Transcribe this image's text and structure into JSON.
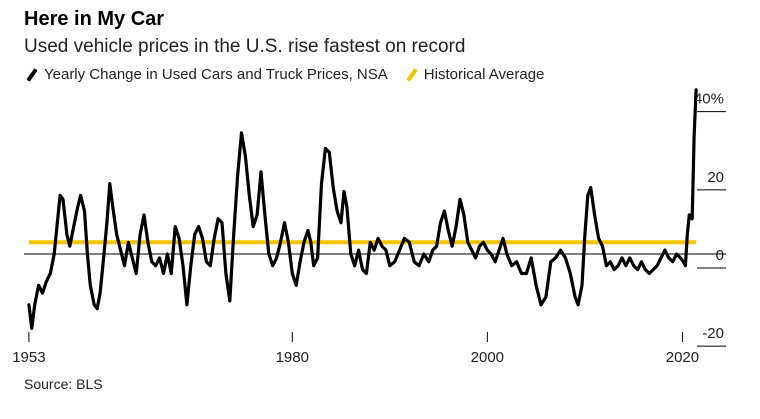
{
  "title": "Here in My Car",
  "subtitle": "Used vehicle prices in the U.S. rise fastest on record",
  "legend": {
    "items": [
      {
        "label": "Yearly Change in Used Cars and Truck Prices, NSA",
        "color": "#000000"
      },
      {
        "label": "Historical Average",
        "color": "#f2c500"
      }
    ]
  },
  "source": "Source: BLS",
  "chart_data": {
    "type": "line",
    "xlim": [
      1952.5,
      2021.8
    ],
    "ylim": [
      -22,
      44
    ],
    "x_ticks": [
      {
        "value": 1953,
        "label": "1953"
      },
      {
        "value": 1980,
        "label": "1980"
      },
      {
        "value": 2000,
        "label": "2000"
      },
      {
        "value": 2020,
        "label": "2020"
      }
    ],
    "y_ticks": [
      {
        "value": 40,
        "label": "40%"
      },
      {
        "value": 20,
        "label": "20"
      },
      {
        "value": 0,
        "label": "0"
      },
      {
        "value": -20,
        "label": "-20"
      }
    ],
    "historical_average": 3,
    "series": [
      {
        "name": "Yearly Change in Used Cars and Truck Prices, NSA",
        "color": "#000000",
        "points": [
          [
            1953.0,
            -13
          ],
          [
            1953.3,
            -19
          ],
          [
            1953.6,
            -13
          ],
          [
            1954.0,
            -8
          ],
          [
            1954.4,
            -10
          ],
          [
            1954.8,
            -7
          ],
          [
            1955.2,
            -5
          ],
          [
            1955.6,
            0
          ],
          [
            1956.0,
            10
          ],
          [
            1956.2,
            15
          ],
          [
            1956.5,
            14
          ],
          [
            1956.9,
            5
          ],
          [
            1957.2,
            2
          ],
          [
            1957.6,
            7
          ],
          [
            1958.0,
            12
          ],
          [
            1958.3,
            15
          ],
          [
            1958.7,
            11
          ],
          [
            1959.0,
            0
          ],
          [
            1959.3,
            -8
          ],
          [
            1959.7,
            -13
          ],
          [
            1960.0,
            -14
          ],
          [
            1960.3,
            -10
          ],
          [
            1960.7,
            0
          ],
          [
            1961.0,
            8
          ],
          [
            1961.3,
            18
          ],
          [
            1961.6,
            12
          ],
          [
            1962.0,
            5
          ],
          [
            1962.4,
            1
          ],
          [
            1962.8,
            -3
          ],
          [
            1963.2,
            3
          ],
          [
            1963.6,
            -1
          ],
          [
            1964.0,
            -5
          ],
          [
            1964.4,
            5
          ],
          [
            1964.8,
            10
          ],
          [
            1965.2,
            3
          ],
          [
            1965.6,
            -2
          ],
          [
            1966.0,
            -3
          ],
          [
            1966.4,
            -1
          ],
          [
            1966.8,
            -5
          ],
          [
            1967.2,
            0
          ],
          [
            1967.6,
            -5
          ],
          [
            1968.0,
            7
          ],
          [
            1968.4,
            4
          ],
          [
            1968.8,
            -3
          ],
          [
            1969.2,
            -13
          ],
          [
            1969.6,
            -3
          ],
          [
            1970.0,
            5
          ],
          [
            1970.4,
            7
          ],
          [
            1970.8,
            4
          ],
          [
            1971.2,
            -2
          ],
          [
            1971.6,
            -3
          ],
          [
            1972.0,
            4
          ],
          [
            1972.4,
            9
          ],
          [
            1972.8,
            8
          ],
          [
            1973.2,
            -5
          ],
          [
            1973.6,
            -12
          ],
          [
            1974.0,
            5
          ],
          [
            1974.4,
            20
          ],
          [
            1974.8,
            31
          ],
          [
            1975.2,
            25
          ],
          [
            1975.6,
            15
          ],
          [
            1976.0,
            7
          ],
          [
            1976.4,
            10
          ],
          [
            1976.8,
            21
          ],
          [
            1977.2,
            10
          ],
          [
            1977.6,
            0
          ],
          [
            1978.0,
            -3
          ],
          [
            1978.4,
            -1
          ],
          [
            1978.8,
            3
          ],
          [
            1979.2,
            8
          ],
          [
            1979.6,
            3
          ],
          [
            1980.0,
            -5
          ],
          [
            1980.4,
            -8
          ],
          [
            1980.8,
            -2
          ],
          [
            1981.2,
            3
          ],
          [
            1981.6,
            6
          ],
          [
            1981.9,
            3
          ],
          [
            1982.2,
            -3
          ],
          [
            1982.6,
            -1
          ],
          [
            1983.0,
            18
          ],
          [
            1983.4,
            27
          ],
          [
            1983.8,
            26
          ],
          [
            1984.2,
            17
          ],
          [
            1984.6,
            11
          ],
          [
            1985.0,
            8
          ],
          [
            1985.3,
            16
          ],
          [
            1985.6,
            12
          ],
          [
            1986.0,
            0
          ],
          [
            1986.4,
            -3
          ],
          [
            1986.8,
            1
          ],
          [
            1987.2,
            -4
          ],
          [
            1987.6,
            -5
          ],
          [
            1988.0,
            3
          ],
          [
            1988.4,
            1
          ],
          [
            1988.8,
            4
          ],
          [
            1989.2,
            2
          ],
          [
            1989.6,
            1
          ],
          [
            1990.0,
            -3
          ],
          [
            1990.5,
            -2
          ],
          [
            1991.0,
            1
          ],
          [
            1991.5,
            4
          ],
          [
            1992.0,
            3
          ],
          [
            1992.5,
            -2
          ],
          [
            1993.0,
            -3
          ],
          [
            1993.5,
            0
          ],
          [
            1994.0,
            -2
          ],
          [
            1994.4,
            1
          ],
          [
            1994.8,
            2
          ],
          [
            1995.2,
            8
          ],
          [
            1995.6,
            11
          ],
          [
            1996.0,
            6
          ],
          [
            1996.4,
            2
          ],
          [
            1996.8,
            7
          ],
          [
            1997.2,
            14
          ],
          [
            1997.6,
            10
          ],
          [
            1998.0,
            3
          ],
          [
            1998.4,
            1
          ],
          [
            1998.8,
            -1
          ],
          [
            1999.2,
            2
          ],
          [
            1999.6,
            3
          ],
          [
            2000.0,
            1
          ],
          [
            2000.4,
            0
          ],
          [
            2000.8,
            -2
          ],
          [
            2001.2,
            1
          ],
          [
            2001.6,
            4
          ],
          [
            2002.0,
            0
          ],
          [
            2002.5,
            -3
          ],
          [
            2003.0,
            -2
          ],
          [
            2003.5,
            -5
          ],
          [
            2004.0,
            -5
          ],
          [
            2004.5,
            -1
          ],
          [
            2005.0,
            -8
          ],
          [
            2005.5,
            -13
          ],
          [
            2006.0,
            -11
          ],
          [
            2006.5,
            -2
          ],
          [
            2007.0,
            -1
          ],
          [
            2007.5,
            1
          ],
          [
            2008.0,
            -1
          ],
          [
            2008.5,
            -5
          ],
          [
            2009.0,
            -11
          ],
          [
            2009.3,
            -13
          ],
          [
            2009.7,
            -8
          ],
          [
            2010.0,
            5
          ],
          [
            2010.3,
            15
          ],
          [
            2010.6,
            17
          ],
          [
            2011.0,
            10
          ],
          [
            2011.4,
            4
          ],
          [
            2011.8,
            2
          ],
          [
            2012.2,
            -3
          ],
          [
            2012.6,
            -2
          ],
          [
            2013.0,
            -4
          ],
          [
            2013.4,
            -3
          ],
          [
            2013.8,
            -1
          ],
          [
            2014.2,
            -3
          ],
          [
            2014.6,
            -1
          ],
          [
            2015.0,
            -3
          ],
          [
            2015.4,
            -4
          ],
          [
            2015.8,
            -2
          ],
          [
            2016.2,
            -4
          ],
          [
            2016.6,
            -5
          ],
          [
            2017.0,
            -4
          ],
          [
            2017.4,
            -3
          ],
          [
            2017.8,
            -1
          ],
          [
            2018.2,
            1
          ],
          [
            2018.6,
            -1
          ],
          [
            2019.0,
            -2
          ],
          [
            2019.4,
            0
          ],
          [
            2019.8,
            -1
          ],
          [
            2020.1,
            -2
          ],
          [
            2020.3,
            -3
          ],
          [
            2020.5,
            5
          ],
          [
            2020.7,
            10
          ],
          [
            2021.0,
            9
          ],
          [
            2021.2,
            30
          ],
          [
            2021.4,
            42
          ]
        ]
      },
      {
        "name": "Historical Average",
        "color": "#f2c500",
        "points": [
          [
            1953.0,
            3
          ],
          [
            2021.4,
            3
          ]
        ]
      }
    ]
  }
}
